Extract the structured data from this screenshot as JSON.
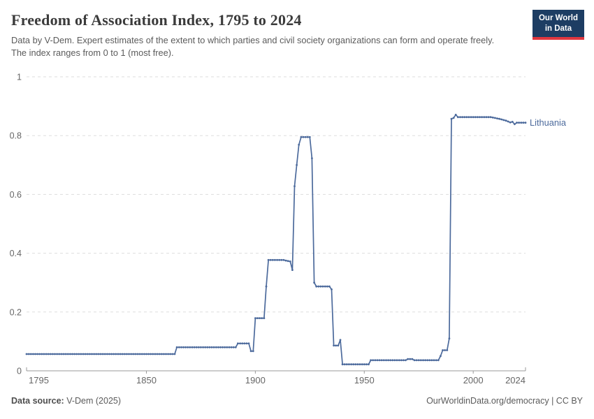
{
  "header": {
    "title": "Freedom of Association Index, 1795 to 2024",
    "subtitle": "Data by V-Dem. Expert estimates of the extent to which parties and civil society organizations can form and operate freely. The index ranges from 0 to 1 (most free)."
  },
  "logo": {
    "line1": "Our World",
    "line2": "in Data",
    "bg_color": "#1d3d63",
    "accent_color": "#e0373f"
  },
  "chart_data": {
    "type": "line",
    "title": "Freedom of Association Index, 1795 to 2024",
    "xlabel": "",
    "ylabel": "",
    "xlim": [
      1795,
      2024
    ],
    "ylim": [
      0,
      1
    ],
    "xticks": [
      1795,
      1850,
      1900,
      1950,
      2000,
      2024
    ],
    "yticks": [
      0,
      0.2,
      0.4,
      0.6,
      0.8,
      1
    ],
    "grid": "horizontal-dashed",
    "gridline_color": "#dddddd",
    "axis_color": "#999999",
    "tick_label_color": "#666666",
    "legend_position": "end-of-line-label",
    "series": [
      {
        "name": "Lithuania",
        "color": "#4C6A9C",
        "points": [
          [
            1795,
            0.057
          ],
          [
            1863,
            0.057
          ],
          [
            1864,
            0.08
          ],
          [
            1891,
            0.08
          ],
          [
            1892,
            0.093
          ],
          [
            1897,
            0.093
          ],
          [
            1898,
            0.067
          ],
          [
            1899,
            0.067
          ],
          [
            1900,
            0.179
          ],
          [
            1904,
            0.179
          ],
          [
            1905,
            0.287
          ],
          [
            1906,
            0.377
          ],
          [
            1913,
            0.377
          ],
          [
            1914,
            0.375
          ],
          [
            1916,
            0.372
          ],
          [
            1917,
            0.343
          ],
          [
            1918,
            0.628
          ],
          [
            1919,
            0.7
          ],
          [
            1920,
            0.769
          ],
          [
            1921,
            0.795
          ],
          [
            1925,
            0.795
          ],
          [
            1926,
            0.723
          ],
          [
            1927,
            0.3
          ],
          [
            1928,
            0.287
          ],
          [
            1934,
            0.287
          ],
          [
            1935,
            0.277
          ],
          [
            1936,
            0.086
          ],
          [
            1938,
            0.086
          ],
          [
            1939,
            0.105
          ],
          [
            1940,
            0.022
          ],
          [
            1952,
            0.022
          ],
          [
            1953,
            0.036
          ],
          [
            1969,
            0.036
          ],
          [
            1970,
            0.04
          ],
          [
            1972,
            0.04
          ],
          [
            1973,
            0.036
          ],
          [
            1984,
            0.036
          ],
          [
            1985,
            0.05
          ],
          [
            1986,
            0.07
          ],
          [
            1988,
            0.07
          ],
          [
            1989,
            0.11
          ],
          [
            1990,
            0.857
          ],
          [
            1991,
            0.86
          ],
          [
            1992,
            0.871
          ],
          [
            1993,
            0.863
          ],
          [
            2008,
            0.863
          ],
          [
            2012,
            0.857
          ],
          [
            2015,
            0.851
          ],
          [
            2017,
            0.845
          ],
          [
            2018,
            0.847
          ],
          [
            2019,
            0.839
          ],
          [
            2020,
            0.844
          ],
          [
            2024,
            0.844
          ]
        ]
      }
    ]
  },
  "footer": {
    "source_label": "Data source:",
    "source_value": " V-Dem (2025)",
    "right_text": "OurWorldinData.org/democracy | CC BY"
  }
}
